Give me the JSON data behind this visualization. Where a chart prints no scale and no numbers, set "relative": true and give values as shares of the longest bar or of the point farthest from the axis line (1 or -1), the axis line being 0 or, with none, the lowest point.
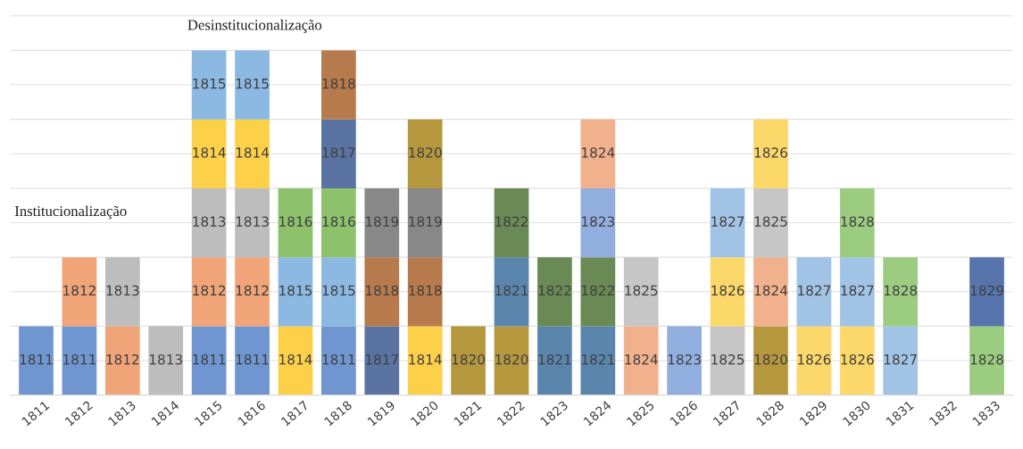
{
  "chart_data": {
    "type": "bar",
    "stacked": true,
    "relative": true,
    "grid": "y",
    "legend": false,
    "categories": [
      "1811",
      "1812",
      "1813",
      "1814",
      "1815",
      "1816",
      "1817",
      "1818",
      "1819",
      "1820",
      "1821",
      "1822",
      "1823",
      "1824",
      "1825",
      "1826",
      "1827",
      "1828",
      "1829",
      "1830",
      "1831",
      "1832",
      "1833"
    ],
    "series": [
      {
        "name": "1811",
        "color": "#7096d2",
        "values": [
          0.2,
          0.2,
          null,
          null,
          0.2,
          0.2,
          null,
          0.2,
          null,
          null,
          null,
          null,
          null,
          null,
          null,
          null,
          null,
          null,
          null,
          null,
          null,
          null,
          null
        ]
      },
      {
        "name": "1812",
        "color": "#f0a477",
        "values": [
          null,
          0.2,
          0.2,
          null,
          0.2,
          0.2,
          null,
          null,
          null,
          null,
          null,
          null,
          null,
          null,
          null,
          null,
          null,
          null,
          null,
          null,
          null,
          null,
          null
        ]
      },
      {
        "name": "1813",
        "color": "#bdbdbd",
        "values": [
          null,
          null,
          0.2,
          0.2,
          0.2,
          0.2,
          null,
          null,
          null,
          null,
          null,
          null,
          null,
          null,
          null,
          null,
          null,
          null,
          null,
          null,
          null,
          null,
          null
        ]
      },
      {
        "name": "1814",
        "color": "#fdd04a",
        "values": [
          null,
          null,
          null,
          null,
          0.2,
          0.2,
          0.2,
          null,
          null,
          0.2,
          null,
          null,
          null,
          null,
          null,
          null,
          null,
          null,
          null,
          null,
          null,
          null,
          null
        ]
      },
      {
        "name": "1815",
        "color": "#8cb9e2",
        "values": [
          null,
          null,
          null,
          null,
          0.2,
          0.2,
          0.2,
          0.2,
          null,
          null,
          null,
          null,
          null,
          null,
          null,
          null,
          null,
          null,
          null,
          null,
          null,
          null,
          null
        ]
      },
      {
        "name": "1816",
        "color": "#8dc16b",
        "values": [
          null,
          null,
          null,
          null,
          null,
          null,
          0.2,
          0.2,
          null,
          null,
          null,
          null,
          null,
          null,
          null,
          null,
          null,
          null,
          null,
          null,
          null,
          null,
          null
        ]
      },
      {
        "name": "1817",
        "color": "#5a73a3",
        "values": [
          null,
          null,
          null,
          null,
          null,
          null,
          null,
          0.2,
          0.2,
          null,
          null,
          null,
          null,
          null,
          null,
          null,
          null,
          null,
          null,
          null,
          null,
          null,
          null
        ]
      },
      {
        "name": "1818",
        "color": "#b77a4c",
        "values": [
          null,
          null,
          null,
          null,
          null,
          null,
          null,
          0.2,
          0.2,
          0.2,
          null,
          null,
          null,
          null,
          null,
          null,
          null,
          null,
          null,
          null,
          null,
          null,
          null
        ]
      },
      {
        "name": "1819",
        "color": "#888888",
        "values": [
          null,
          null,
          null,
          null,
          null,
          null,
          null,
          null,
          0.2,
          0.2,
          null,
          null,
          null,
          null,
          null,
          null,
          null,
          null,
          null,
          null,
          null,
          null,
          null
        ]
      },
      {
        "name": "1820",
        "color": "#b5983e",
        "values": [
          null,
          null,
          null,
          null,
          null,
          null,
          null,
          null,
          null,
          0.2,
          0.2,
          0.2,
          null,
          null,
          null,
          null,
          null,
          0.2,
          null,
          null,
          null,
          null,
          null
        ]
      },
      {
        "name": "1821",
        "color": "#5a86ad",
        "values": [
          null,
          null,
          null,
          null,
          null,
          null,
          null,
          null,
          null,
          null,
          null,
          0.2,
          0.2,
          0.2,
          null,
          null,
          null,
          null,
          null,
          null,
          null,
          null,
          null
        ]
      },
      {
        "name": "1822",
        "color": "#6a8a55",
        "values": [
          null,
          null,
          null,
          null,
          null,
          null,
          null,
          null,
          null,
          null,
          null,
          0.2,
          0.2,
          0.2,
          null,
          null,
          null,
          null,
          null,
          null,
          null,
          null,
          null
        ]
      },
      {
        "name": "1823",
        "color": "#92aedf",
        "values": [
          null,
          null,
          null,
          null,
          null,
          null,
          null,
          null,
          null,
          null,
          null,
          null,
          null,
          0.2,
          null,
          0.2,
          null,
          null,
          null,
          null,
          null,
          null,
          null
        ]
      },
      {
        "name": "1824",
        "color": "#f2b18d",
        "values": [
          null,
          null,
          null,
          null,
          null,
          null,
          null,
          null,
          null,
          null,
          null,
          null,
          null,
          0.2,
          0.2,
          null,
          null,
          0.2,
          null,
          null,
          null,
          null,
          null
        ]
      },
      {
        "name": "1825",
        "color": "#c6c6c6",
        "values": [
          null,
          null,
          null,
          null,
          null,
          null,
          null,
          null,
          null,
          null,
          null,
          null,
          null,
          null,
          0.2,
          null,
          0.2,
          0.2,
          null,
          null,
          null,
          null,
          null
        ]
      },
      {
        "name": "1826",
        "color": "#fcd86a",
        "values": [
          null,
          null,
          null,
          null,
          null,
          null,
          null,
          null,
          null,
          null,
          null,
          null,
          null,
          null,
          null,
          null,
          0.2,
          0.2,
          0.2,
          0.2,
          null,
          null,
          null
        ]
      },
      {
        "name": "1827",
        "color": "#a1c4e6",
        "values": [
          null,
          null,
          null,
          null,
          null,
          null,
          null,
          null,
          null,
          null,
          null,
          null,
          null,
          null,
          null,
          null,
          0.2,
          null,
          0.2,
          0.2,
          0.2,
          null,
          null
        ]
      },
      {
        "name": "1828",
        "color": "#9ccc80",
        "values": [
          null,
          null,
          null,
          null,
          null,
          null,
          null,
          null,
          null,
          null,
          null,
          null,
          null,
          null,
          null,
          null,
          null,
          null,
          null,
          0.2,
          0.2,
          null,
          0.2
        ]
      },
      {
        "name": "1829",
        "color": "#5774ad",
        "values": [
          null,
          null,
          null,
          null,
          null,
          null,
          null,
          null,
          null,
          null,
          null,
          null,
          null,
          null,
          null,
          null,
          null,
          null,
          null,
          null,
          null,
          null,
          0.2
        ]
      }
    ],
    "annotations": [
      "Institucionalização",
      "Desinstitucionalização"
    ]
  }
}
